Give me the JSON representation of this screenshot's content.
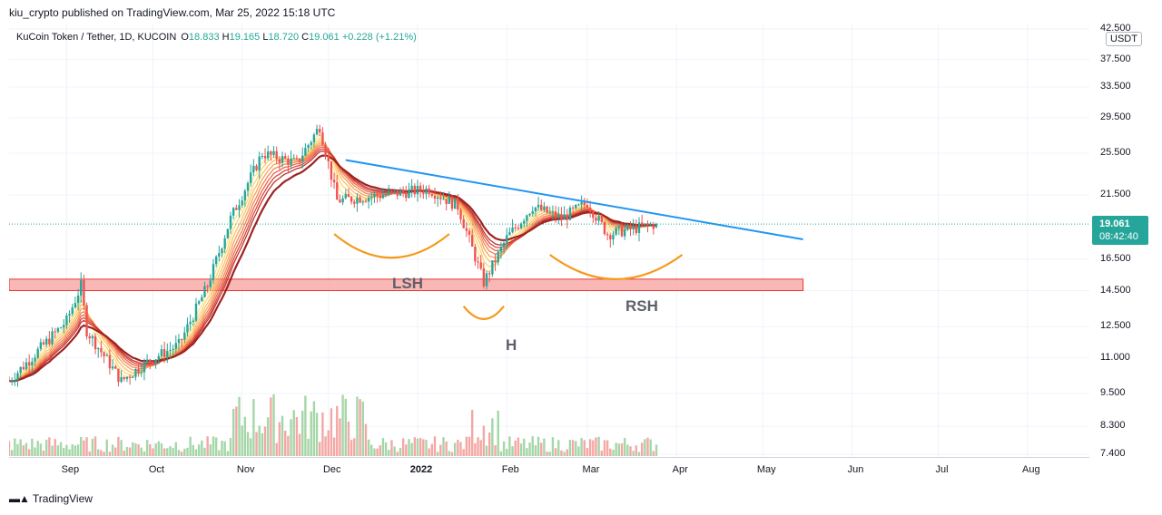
{
  "header": {
    "published_line": "kiu_crypto published on TradingView.com, Mar 25, 2022 15:18 UTC"
  },
  "legend": {
    "symbol": "KuCoin Token / Tether, 1D, KUCOIN",
    "o_label": "O",
    "o_value": "18.833",
    "h_label": "H",
    "h_value": "19.165",
    "l_label": "L",
    "l_value": "18.720",
    "c_label": "C",
    "c_value": "19.061",
    "change": "+0.228 (+1.21%)"
  },
  "price_axis": {
    "currency": "USDT",
    "last_price": "19.061",
    "countdown": "08:42:40"
  },
  "annotations": {
    "lsh": "LSH",
    "h": "H",
    "rsh": "RSH"
  },
  "footer": {
    "brand": "TradingView"
  },
  "colors": {
    "up": "#26a69a",
    "down": "#ef5350",
    "trendline": "#2196f3",
    "support_zone": "#f8aaa8",
    "arc": "#f59a1c"
  },
  "chart_data": {
    "type": "candlestick",
    "title": "KuCoin Token / Tether, 1D, KUCOIN",
    "ylabel": "USDT",
    "y_scale": "log",
    "y_ticks": [
      "42.500",
      "37.500",
      "33.500",
      "29.500",
      "25.500",
      "21.500",
      "16.500",
      "14.500",
      "12.500",
      "11.000",
      "9.500",
      "8.300",
      "7.400"
    ],
    "x_ticks": [
      "Sep",
      "Oct",
      "Nov",
      "Dec",
      "2022",
      "Feb",
      "Mar",
      "Apr",
      "May",
      "Jun",
      "Jul",
      "Aug"
    ],
    "x_range": [
      "2021-08-12",
      "2022-08-20"
    ],
    "ylim": [
      7.2,
      43.5
    ],
    "last_close": 19.061,
    "key_points": [
      {
        "date": "2021-08-12",
        "close": 10.0
      },
      {
        "date": "2021-09-01",
        "close": 12.8
      },
      {
        "date": "2021-09-06",
        "close": 14.8
      },
      {
        "date": "2021-09-08",
        "close": 12.3
      },
      {
        "date": "2021-09-20",
        "close": 10.0
      },
      {
        "date": "2021-09-30",
        "close": 10.9
      },
      {
        "date": "2021-10-10",
        "close": 11.6
      },
      {
        "date": "2021-10-20",
        "close": 14.8
      },
      {
        "date": "2021-10-28",
        "close": 19.5
      },
      {
        "date": "2021-11-08",
        "close": 25.5
      },
      {
        "date": "2021-11-20",
        "close": 24.5
      },
      {
        "date": "2021-11-28",
        "close": 28.5
      },
      {
        "date": "2021-12-04",
        "close": 21.0
      },
      {
        "date": "2021-12-20",
        "close": 21.5
      },
      {
        "date": "2022-01-05",
        "close": 22.0
      },
      {
        "date": "2022-01-15",
        "close": 20.5
      },
      {
        "date": "2022-01-24",
        "close": 15.0
      },
      {
        "date": "2022-02-01",
        "close": 18.0
      },
      {
        "date": "2022-02-10",
        "close": 20.5
      },
      {
        "date": "2022-02-20",
        "close": 19.5
      },
      {
        "date": "2022-03-01",
        "close": 20.8
      },
      {
        "date": "2022-03-08",
        "close": 18.3
      },
      {
        "date": "2022-03-25",
        "close": 19.061
      }
    ],
    "trendline": [
      {
        "date": "2021-12-07",
        "value": 24.8
      },
      {
        "date": "2022-05-15",
        "value": 17.9
      }
    ],
    "support_zone": {
      "from": "2021-08-12",
      "to": "2022-05-15",
      "low": 14.5,
      "high": 15.2
    },
    "volume": "bars below price, heights relative"
  }
}
